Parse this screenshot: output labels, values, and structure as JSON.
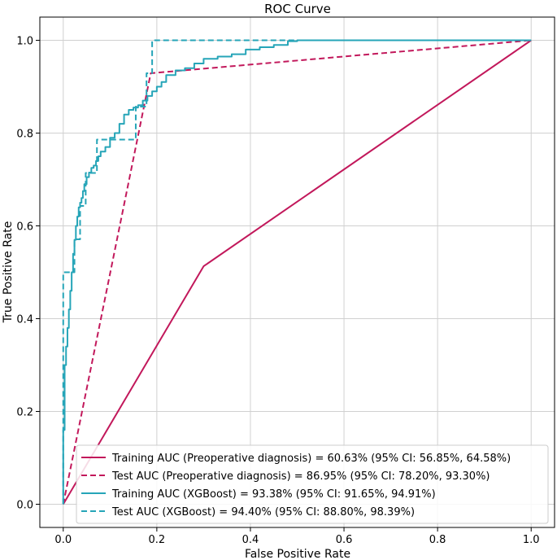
{
  "chart_data": {
    "type": "line",
    "title": "ROC  Curve",
    "xlabel": "False Positive Rate",
    "ylabel": "True Positive Rate",
    "xlim": [
      -0.05,
      1.05
    ],
    "ylim": [
      -0.05,
      1.05
    ],
    "grid": true,
    "legend_position": "lower-right",
    "xticks": [
      0.0,
      0.2,
      0.4,
      0.6,
      0.8,
      1.0
    ],
    "xtick_labels": [
      "0.0",
      "0.2",
      "0.4",
      "0.6",
      "0.8",
      "1.0"
    ],
    "yticks": [
      0.0,
      0.2,
      0.4,
      0.6,
      0.8,
      1.0
    ],
    "ytick_labels": [
      "0.0",
      "0.2",
      "0.4",
      "0.6",
      "0.8",
      "1.0"
    ],
    "series": [
      {
        "name": "Training AUC (Preoperative diagnosis) = 60.63% (95% CI: 56.85%, 64.58%)",
        "color": "#c2185b",
        "dash": "solid",
        "x": [
          0.0,
          0.3,
          1.0
        ],
        "y": [
          0.0,
          0.513,
          1.0
        ]
      },
      {
        "name": "Test AUC (Preoperative diagnosis) = 86.95% (95% CI: 78.20%, 93.30%)",
        "color": "#c2185b",
        "dash": "dashed",
        "x": [
          0.0,
          0.187,
          1.0
        ],
        "y": [
          0.0,
          0.929,
          1.0
        ]
      },
      {
        "name": "Training AUC (XGBoost) = 93.38% (95% CI: 91.65%, 94.91%)",
        "color": "#26a5b8",
        "dash": "solid",
        "x": [
          0.0,
          0.0,
          0.003,
          0.003,
          0.006,
          0.006,
          0.009,
          0.009,
          0.012,
          0.012,
          0.015,
          0.015,
          0.018,
          0.018,
          0.021,
          0.021,
          0.024,
          0.024,
          0.027,
          0.027,
          0.03,
          0.03,
          0.033,
          0.033,
          0.036,
          0.036,
          0.039,
          0.039,
          0.042,
          0.042,
          0.045,
          0.045,
          0.05,
          0.05,
          0.055,
          0.055,
          0.06,
          0.06,
          0.065,
          0.065,
          0.07,
          0.07,
          0.075,
          0.075,
          0.08,
          0.08,
          0.09,
          0.09,
          0.1,
          0.1,
          0.11,
          0.11,
          0.12,
          0.12,
          0.13,
          0.13,
          0.14,
          0.14,
          0.15,
          0.15,
          0.16,
          0.16,
          0.17,
          0.17,
          0.18,
          0.18,
          0.19,
          0.19,
          0.2,
          0.2,
          0.21,
          0.21,
          0.22,
          0.22,
          0.24,
          0.24,
          0.26,
          0.26,
          0.28,
          0.28,
          0.3,
          0.3,
          0.33,
          0.33,
          0.36,
          0.36,
          0.39,
          0.39,
          0.42,
          0.42,
          0.45,
          0.45,
          0.48,
          0.48,
          0.5,
          0.5,
          0.55,
          1.0
        ],
        "y": [
          0.0,
          0.16,
          0.16,
          0.3,
          0.3,
          0.34,
          0.34,
          0.38,
          0.38,
          0.42,
          0.42,
          0.46,
          0.46,
          0.5,
          0.5,
          0.54,
          0.54,
          0.57,
          0.57,
          0.6,
          0.6,
          0.62,
          0.62,
          0.64,
          0.64,
          0.65,
          0.65,
          0.66,
          0.66,
          0.675,
          0.675,
          0.69,
          0.69,
          0.705,
          0.705,
          0.715,
          0.715,
          0.725,
          0.725,
          0.73,
          0.73,
          0.74,
          0.74,
          0.75,
          0.75,
          0.76,
          0.76,
          0.77,
          0.77,
          0.79,
          0.79,
          0.8,
          0.8,
          0.82,
          0.82,
          0.84,
          0.84,
          0.85,
          0.85,
          0.855,
          0.855,
          0.86,
          0.86,
          0.87,
          0.87,
          0.88,
          0.88,
          0.89,
          0.89,
          0.9,
          0.9,
          0.91,
          0.91,
          0.925,
          0.925,
          0.935,
          0.935,
          0.94,
          0.94,
          0.95,
          0.95,
          0.96,
          0.96,
          0.965,
          0.965,
          0.97,
          0.97,
          0.98,
          0.98,
          0.985,
          0.985,
          0.99,
          0.99,
          0.998,
          0.998,
          1.0,
          1.0,
          1.0
        ]
      },
      {
        "name": "Test AUC (XGBoost) = 94.40% (95% CI: 88.80%, 98.39%)",
        "color": "#26a5b8",
        "dash": "dashed",
        "x": [
          0.0,
          0.0,
          0.0,
          0.024,
          0.024,
          0.036,
          0.036,
          0.048,
          0.048,
          0.072,
          0.072,
          0.118,
          0.118,
          0.155,
          0.155,
          0.178,
          0.178,
          0.19,
          0.19,
          1.0
        ],
        "y": [
          0.0,
          0.5,
          0.5,
          0.5,
          0.571,
          0.571,
          0.643,
          0.643,
          0.714,
          0.714,
          0.786,
          0.786,
          0.786,
          0.786,
          0.857,
          0.857,
          0.929,
          0.929,
          1.0,
          1.0
        ]
      }
    ]
  }
}
